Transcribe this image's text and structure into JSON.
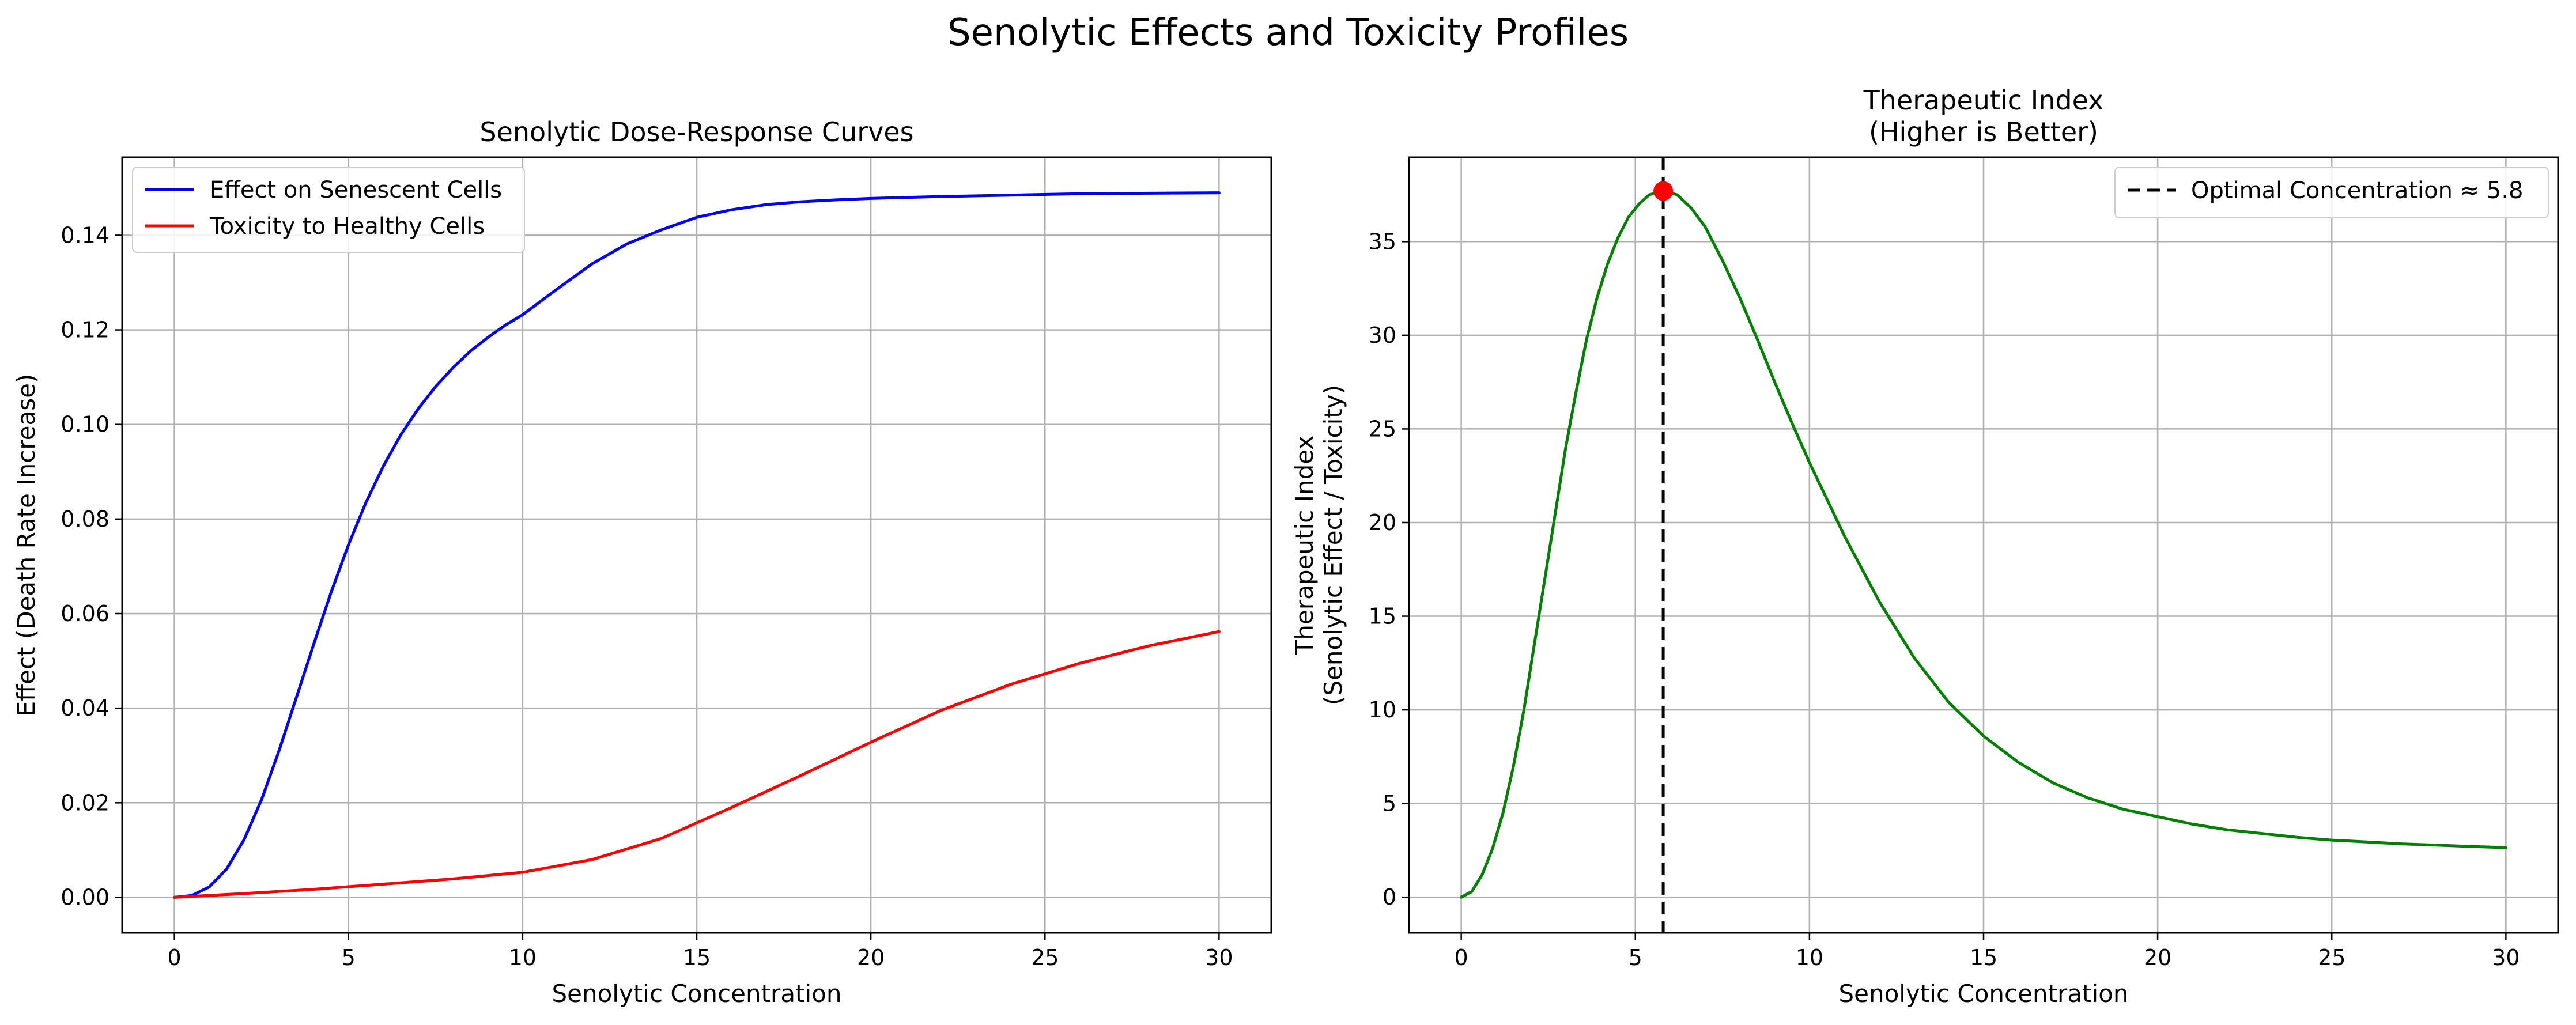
{
  "figure": {
    "suptitle": "Senolytic Effects and Toxicity Profiles"
  },
  "chart_data": [
    {
      "type": "line",
      "title": "Senolytic Dose-Response Curves",
      "xlabel": "Senolytic Concentration",
      "ylabel": "Effect (Death Rate Increase)",
      "xlim": [
        -1.5,
        31.5
      ],
      "ylim": [
        -0.0075,
        0.1565
      ],
      "xticks": [
        0,
        5,
        10,
        15,
        20,
        25,
        30
      ],
      "yticks": [
        0.0,
        0.02,
        0.04,
        0.06,
        0.08,
        0.1,
        0.12,
        0.14
      ],
      "ytick_labels": [
        "0.00",
        "0.02",
        "0.04",
        "0.06",
        "0.08",
        "0.10",
        "0.12",
        "0.14"
      ],
      "grid": true,
      "legend_position": "upper-left",
      "series": [
        {
          "name": "Effect on Senescent Cells",
          "color": "#0000ff",
          "x": [
            0,
            0.5,
            1,
            1.5,
            2,
            2.5,
            3,
            3.5,
            4,
            4.5,
            5,
            5.5,
            6,
            6.5,
            7,
            7.5,
            8,
            8.5,
            9,
            9.5,
            10,
            11,
            12,
            13,
            14,
            15,
            16,
            17,
            18,
            19,
            20,
            22,
            24,
            26,
            28,
            30
          ],
          "y": [
            0,
            0.0004,
            0.0022,
            0.006,
            0.0122,
            0.0206,
            0.0309,
            0.0422,
            0.0535,
            0.0645,
            0.0746,
            0.0835,
            0.0912,
            0.0978,
            0.1033,
            0.108,
            0.112,
            0.1155,
            0.1184,
            0.121,
            0.1232,
            0.1287,
            0.134,
            0.1382,
            0.1412,
            0.1438,
            0.1454,
            0.1465,
            0.1471,
            0.1475,
            0.1478,
            0.1482,
            0.1485,
            0.1488,
            0.1489,
            0.149
          ]
        },
        {
          "name": "Toxicity to Healthy Cells",
          "color": "#ff0000",
          "x": [
            0,
            2,
            4,
            6,
            8,
            10,
            12,
            14,
            16,
            18,
            20,
            22,
            24,
            26,
            28,
            30
          ],
          "y": [
            0,
            0.0008,
            0.0017,
            0.0028,
            0.0039,
            0.0053,
            0.008,
            0.0125,
            0.019,
            0.0258,
            0.0328,
            0.0395,
            0.045,
            0.0495,
            0.0532,
            0.0562
          ]
        }
      ]
    },
    {
      "type": "line",
      "title_lines": [
        "Therapeutic Index",
        "(Higher is Better)"
      ],
      "xlabel": "Senolytic Concentration",
      "ylabel_lines": [
        "Therapeutic Index",
        "(Senolytic Effect / Toxicity)"
      ],
      "xlim": [
        -1.5,
        31.5
      ],
      "ylim": [
        -1.9,
        39.5
      ],
      "xticks": [
        0,
        5,
        10,
        15,
        20,
        25,
        30
      ],
      "yticks": [
        0,
        5,
        10,
        15,
        20,
        25,
        30,
        35
      ],
      "grid": true,
      "legend_position": "upper-right",
      "series": [
        {
          "name": "",
          "color": "#008000",
          "x": [
            0,
            0.3,
            0.6,
            0.9,
            1.2,
            1.5,
            1.8,
            2.1,
            2.4,
            2.7,
            3.0,
            3.3,
            3.6,
            3.9,
            4.2,
            4.5,
            4.8,
            5.1,
            5.4,
            5.8,
            6.2,
            6.6,
            7.0,
            7.5,
            8.0,
            8.5,
            9.0,
            9.5,
            10,
            11,
            12,
            13,
            14,
            15,
            16,
            17,
            18,
            19,
            20,
            21,
            22,
            23,
            24,
            25,
            26,
            27,
            28,
            29,
            30
          ],
          "y": [
            0,
            0.3,
            1.2,
            2.6,
            4.5,
            7.0,
            10.0,
            13.5,
            17.0,
            20.5,
            24.0,
            27.0,
            29.8,
            32.0,
            33.8,
            35.2,
            36.3,
            37.0,
            37.5,
            37.7,
            37.5,
            36.8,
            35.8,
            34.0,
            32.0,
            29.8,
            27.5,
            25.3,
            23.2,
            19.3,
            15.8,
            12.8,
            10.4,
            8.6,
            7.2,
            6.1,
            5.3,
            4.7,
            4.3,
            3.9,
            3.6,
            3.4,
            3.2,
            3.05,
            2.95,
            2.85,
            2.78,
            2.71,
            2.65
          ]
        }
      ],
      "optimal": {
        "label": "Optimal Concentration ≈ 5.8",
        "x": 5.8,
        "y": 37.7,
        "line_color": "#000000",
        "marker_color": "#ff0000"
      }
    }
  ]
}
